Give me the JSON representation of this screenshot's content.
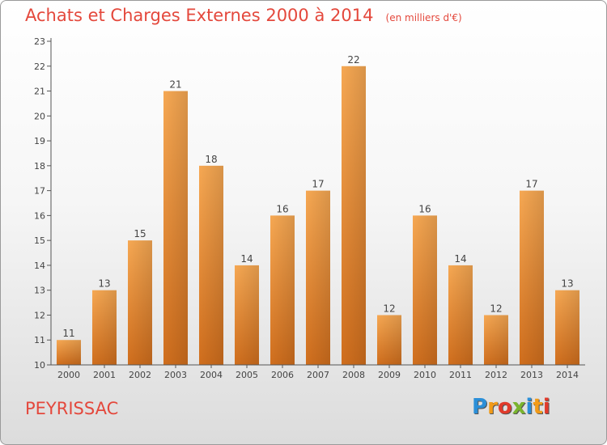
{
  "title": "Achats et Charges Externes 2000 à 2014",
  "subtitle": "(en milliers d'€)",
  "commune": "PEYRISSAC",
  "logo": {
    "letters": [
      "P",
      "r",
      "o",
      "x",
      "i",
      "t",
      "i"
    ],
    "colors": [
      "#2b8fd8",
      "#f29b18",
      "#e13b2c",
      "#7ab52e",
      "#2b8fd8",
      "#f29b18",
      "#e13b2c"
    ]
  },
  "colors": {
    "title": "#e4483c",
    "bar_light": "#f5a650",
    "bar_dark": "#d4721f",
    "axis": "#444444"
  },
  "chart_data": {
    "type": "bar",
    "title": "Achats et Charges Externes 2000 à 2014",
    "subtitle": "(en milliers d'€)",
    "xlabel": "",
    "ylabel": "",
    "categories": [
      "2000",
      "2001",
      "2002",
      "2003",
      "2004",
      "2005",
      "2006",
      "2007",
      "2008",
      "2009",
      "2010",
      "2011",
      "2012",
      "2013",
      "2014"
    ],
    "values": [
      11,
      13,
      15,
      21,
      18,
      14,
      16,
      17,
      22,
      12,
      16,
      14,
      12,
      17,
      13
    ],
    "ylim": [
      10,
      23
    ],
    "yticks": [
      10,
      11,
      12,
      13,
      14,
      15,
      16,
      17,
      18,
      19,
      20,
      21,
      22,
      23
    ],
    "grid": false,
    "data_labels": true
  }
}
